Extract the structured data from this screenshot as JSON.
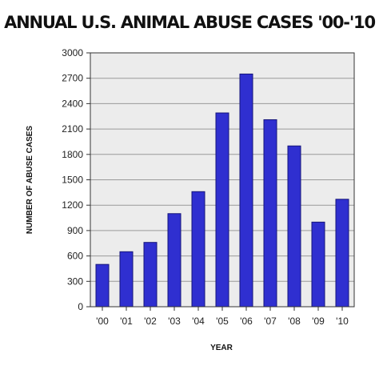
{
  "chart_data": {
    "type": "bar",
    "title": "ANNUAL U.S. ANIMAL ABUSE CASES '00-'10",
    "xlabel": "YEAR",
    "ylabel": "NUMBER OF ABUSE CASES",
    "categories": [
      "'00",
      "'01",
      "'02",
      "'03",
      "'04",
      "'05",
      "'06",
      "'07",
      "'08",
      "'09",
      "'10"
    ],
    "values": [
      500,
      650,
      760,
      1100,
      1360,
      2290,
      2750,
      2210,
      1900,
      1000,
      1270
    ],
    "ylim": [
      0,
      3000
    ],
    "yticks": [
      0,
      300,
      600,
      900,
      1200,
      1500,
      1800,
      2100,
      2400,
      2700,
      3000
    ],
    "grid": true,
    "legend": "none",
    "colors": {
      "bar": "#2f2fd0",
      "bar_edge": "#15157a",
      "plot_bg": "#ececec",
      "grid": "#9a9a9a"
    }
  }
}
